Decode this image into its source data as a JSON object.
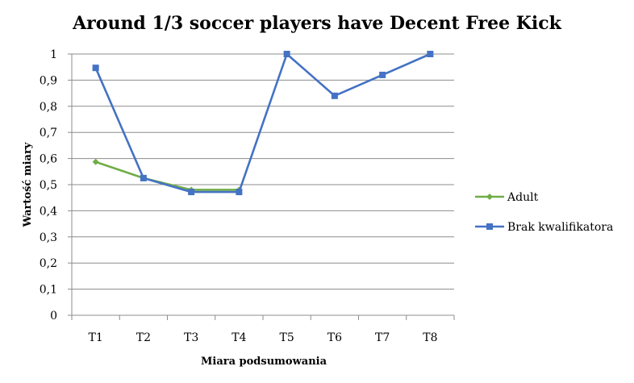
{
  "chart_data": {
    "type": "line",
    "title": "Around 1/3 soccer players have Decent Free Kick",
    "xlabel": "Miara podsumowania",
    "ylabel": "Wartość miary",
    "categories": [
      "T1",
      "T2",
      "T3",
      "T4",
      "T5",
      "T6",
      "T7",
      "T8"
    ],
    "ylim": [
      0,
      1
    ],
    "yticks": [
      "0",
      "0,1",
      "0,2",
      "0,3",
      "0,4",
      "0,5",
      "0,6",
      "0,7",
      "0,8",
      "0,9",
      "1"
    ],
    "grid": true,
    "legend_position": "right",
    "series": [
      {
        "name": "Adult",
        "color": "#70ad47",
        "marker": "diamond",
        "values": [
          0.587,
          0.525,
          0.48,
          0.48,
          null,
          null,
          null,
          null
        ]
      },
      {
        "name": "Brak kwalifikatora",
        "color": "#4472c4",
        "marker": "square",
        "values": [
          0.947,
          0.525,
          0.472,
          0.472,
          1.0,
          0.84,
          0.92,
          1.0
        ]
      }
    ]
  }
}
